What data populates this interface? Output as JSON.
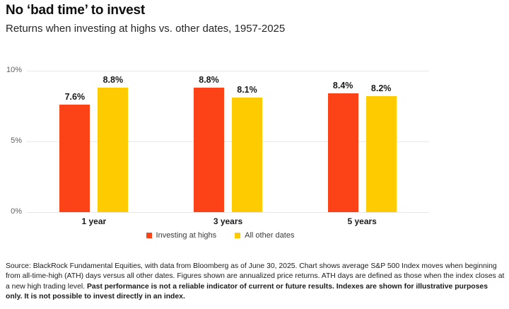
{
  "header": {
    "title": "No ‘bad time’ to invest",
    "subtitle": "Returns when investing at highs vs. other dates, 1957-2025"
  },
  "chart_data": {
    "type": "bar",
    "categories": [
      "1 year",
      "3 years",
      "5 years"
    ],
    "series": [
      {
        "name": "Investing at highs",
        "color": "#FB4317",
        "values": [
          7.6,
          8.8,
          8.4
        ]
      },
      {
        "name": "All other dates",
        "color": "#FECB00",
        "values": [
          8.8,
          8.1,
          8.2
        ]
      }
    ],
    "value_suffix": "%",
    "yticks": [
      {
        "value": 0,
        "label": "0%"
      },
      {
        "value": 5,
        "label": "5%"
      },
      {
        "value": 10,
        "label": "10%"
      }
    ],
    "ylim": [
      0,
      10
    ],
    "grid": true,
    "legend_position": "bottom"
  },
  "footer": {
    "normal": "Source: BlackRock Fundamental Equities, with data from Bloomberg as of June 30, 2025. Chart shows average S&P 500 Index moves when beginning from all-time-high (ATH) days versus all other dates. Figures shown are annualized price returns. ATH days are defined as those when the index closes at a new high trading level. ",
    "bold": "Past performance is not a reliable indicator of current or future results. Indexes are shown for illustrative purposes only. It is not possible to invest directly in an index."
  }
}
